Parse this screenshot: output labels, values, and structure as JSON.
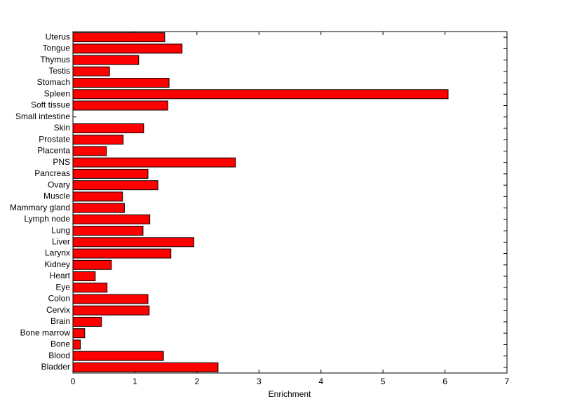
{
  "chart_data": {
    "type": "barh",
    "xlabel": "Enrichment",
    "categories": [
      "Uterus",
      "Tongue",
      "Thymus",
      "Testis",
      "Stomach",
      "Spleen",
      "Soft tissue",
      "Small intestine",
      "Skin",
      "Prostate",
      "Placenta",
      "PNS",
      "Pancreas",
      "Ovary",
      "Muscle",
      "Mammary gland",
      "Lymph node",
      "Lung",
      "Liver",
      "Larynx",
      "Kidney",
      "Heart",
      "Eye",
      "Colon",
      "Cervix",
      "Brain",
      "Bone marrow",
      "Bone",
      "Blood",
      "Bladder"
    ],
    "values": [
      1.48,
      1.76,
      1.06,
      0.59,
      1.55,
      6.05,
      1.53,
      0,
      1.14,
      0.81,
      0.54,
      2.62,
      1.21,
      1.37,
      0.8,
      0.83,
      1.24,
      1.13,
      1.95,
      1.58,
      0.62,
      0.36,
      0.55,
      1.21,
      1.23,
      0.46,
      0.19,
      0.12,
      1.46,
      2.34
    ],
    "color": "#ff0000",
    "xlim": [
      0,
      7
    ],
    "xticks": [
      0,
      1,
      2,
      3,
      4,
      5,
      6,
      7
    ],
    "grid": false
  }
}
